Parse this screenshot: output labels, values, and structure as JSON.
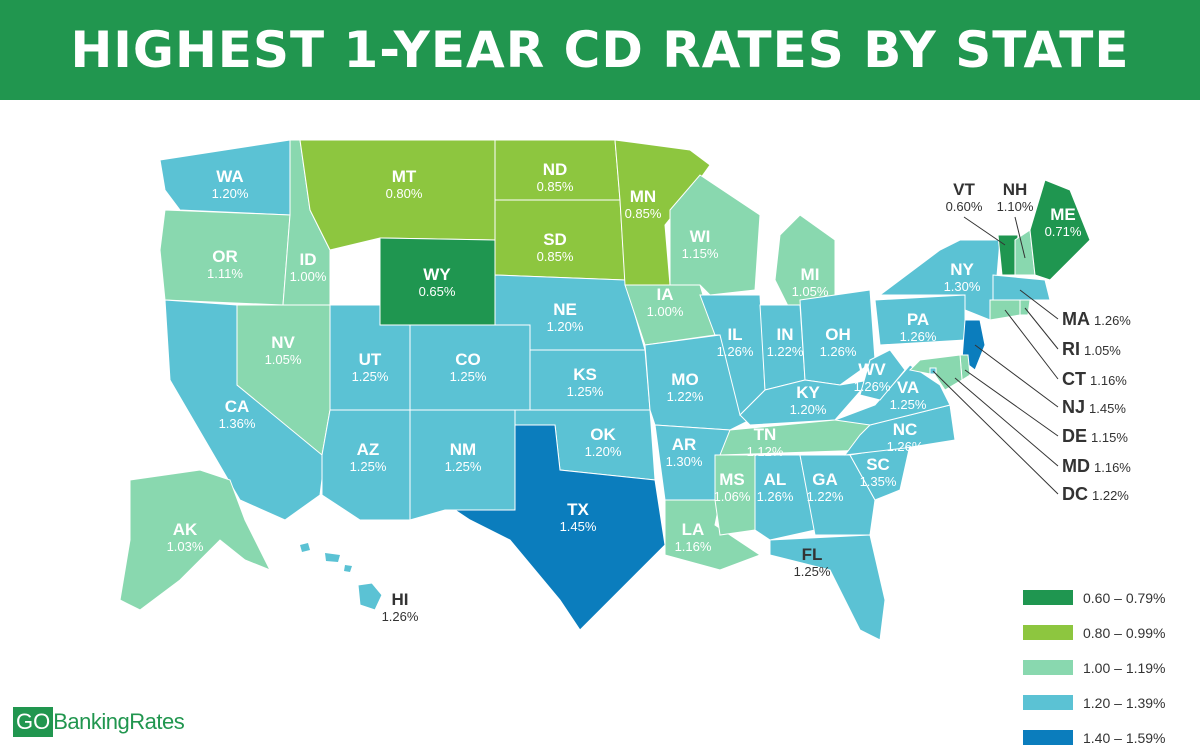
{
  "title": "HIGHEST 1-YEAR CD RATES BY STATE",
  "legend": [
    {
      "label": "0.60 – 0.79%",
      "min": 0.6,
      "max": 0.79,
      "color": "#1f9650"
    },
    {
      "label": "0.80 – 0.99%",
      "min": 0.8,
      "max": 0.99,
      "color": "#8dc63f"
    },
    {
      "label": "1.00 – 1.19%",
      "min": 1.0,
      "max": 1.19,
      "color": "#89d8af"
    },
    {
      "label": "1.20 – 1.39%",
      "min": 1.2,
      "max": 1.39,
      "color": "#5bc2d4"
    },
    {
      "label": "1.40 – 1.59%",
      "min": 1.4,
      "max": 1.59,
      "color": "#0b7dbd"
    }
  ],
  "states": [
    {
      "abbr": "WA",
      "rate": "1.20%"
    },
    {
      "abbr": "OR",
      "rate": "1.11%"
    },
    {
      "abbr": "CA",
      "rate": "1.36%"
    },
    {
      "abbr": "ID",
      "rate": "1.00%"
    },
    {
      "abbr": "NV",
      "rate": "1.05%"
    },
    {
      "abbr": "MT",
      "rate": "0.80%"
    },
    {
      "abbr": "WY",
      "rate": "0.65%"
    },
    {
      "abbr": "UT",
      "rate": "1.25%"
    },
    {
      "abbr": "CO",
      "rate": "1.25%"
    },
    {
      "abbr": "AZ",
      "rate": "1.25%"
    },
    {
      "abbr": "NM",
      "rate": "1.25%"
    },
    {
      "abbr": "ND",
      "rate": "0.85%"
    },
    {
      "abbr": "SD",
      "rate": "0.85%"
    },
    {
      "abbr": "NE",
      "rate": "1.20%"
    },
    {
      "abbr": "KS",
      "rate": "1.25%"
    },
    {
      "abbr": "OK",
      "rate": "1.20%"
    },
    {
      "abbr": "TX",
      "rate": "1.45%"
    },
    {
      "abbr": "MN",
      "rate": "0.85%"
    },
    {
      "abbr": "IA",
      "rate": "1.00%"
    },
    {
      "abbr": "MO",
      "rate": "1.22%"
    },
    {
      "abbr": "AR",
      "rate": "1.30%"
    },
    {
      "abbr": "LA",
      "rate": "1.16%"
    },
    {
      "abbr": "WI",
      "rate": "1.15%"
    },
    {
      "abbr": "IL",
      "rate": "1.26%"
    },
    {
      "abbr": "MI",
      "rate": "1.05%"
    },
    {
      "abbr": "IN",
      "rate": "1.22%"
    },
    {
      "abbr": "OH",
      "rate": "1.26%"
    },
    {
      "abbr": "KY",
      "rate": "1.20%"
    },
    {
      "abbr": "TN",
      "rate": "1.12%"
    },
    {
      "abbr": "MS",
      "rate": "1.06%"
    },
    {
      "abbr": "AL",
      "rate": "1.26%"
    },
    {
      "abbr": "GA",
      "rate": "1.22%"
    },
    {
      "abbr": "FL",
      "rate": "1.25%"
    },
    {
      "abbr": "SC",
      "rate": "1.35%"
    },
    {
      "abbr": "NC",
      "rate": "1.26%"
    },
    {
      "abbr": "VA",
      "rate": "1.25%"
    },
    {
      "abbr": "WV",
      "rate": "1.26%"
    },
    {
      "abbr": "PA",
      "rate": "1.26%"
    },
    {
      "abbr": "NY",
      "rate": "1.30%"
    },
    {
      "abbr": "VT",
      "rate": "0.60%"
    },
    {
      "abbr": "NH",
      "rate": "1.10%"
    },
    {
      "abbr": "ME",
      "rate": "0.71%"
    },
    {
      "abbr": "MA",
      "rate": "1.26%"
    },
    {
      "abbr": "RI",
      "rate": "1.05%"
    },
    {
      "abbr": "CT",
      "rate": "1.16%"
    },
    {
      "abbr": "NJ",
      "rate": "1.45%"
    },
    {
      "abbr": "DE",
      "rate": "1.15%"
    },
    {
      "abbr": "MD",
      "rate": "1.16%"
    },
    {
      "abbr": "DC",
      "rate": "1.22%"
    },
    {
      "abbr": "AK",
      "rate": "1.03%"
    },
    {
      "abbr": "HI",
      "rate": "1.26%"
    }
  ],
  "logo": {
    "go": "GO",
    "text": "BankingRates"
  }
}
